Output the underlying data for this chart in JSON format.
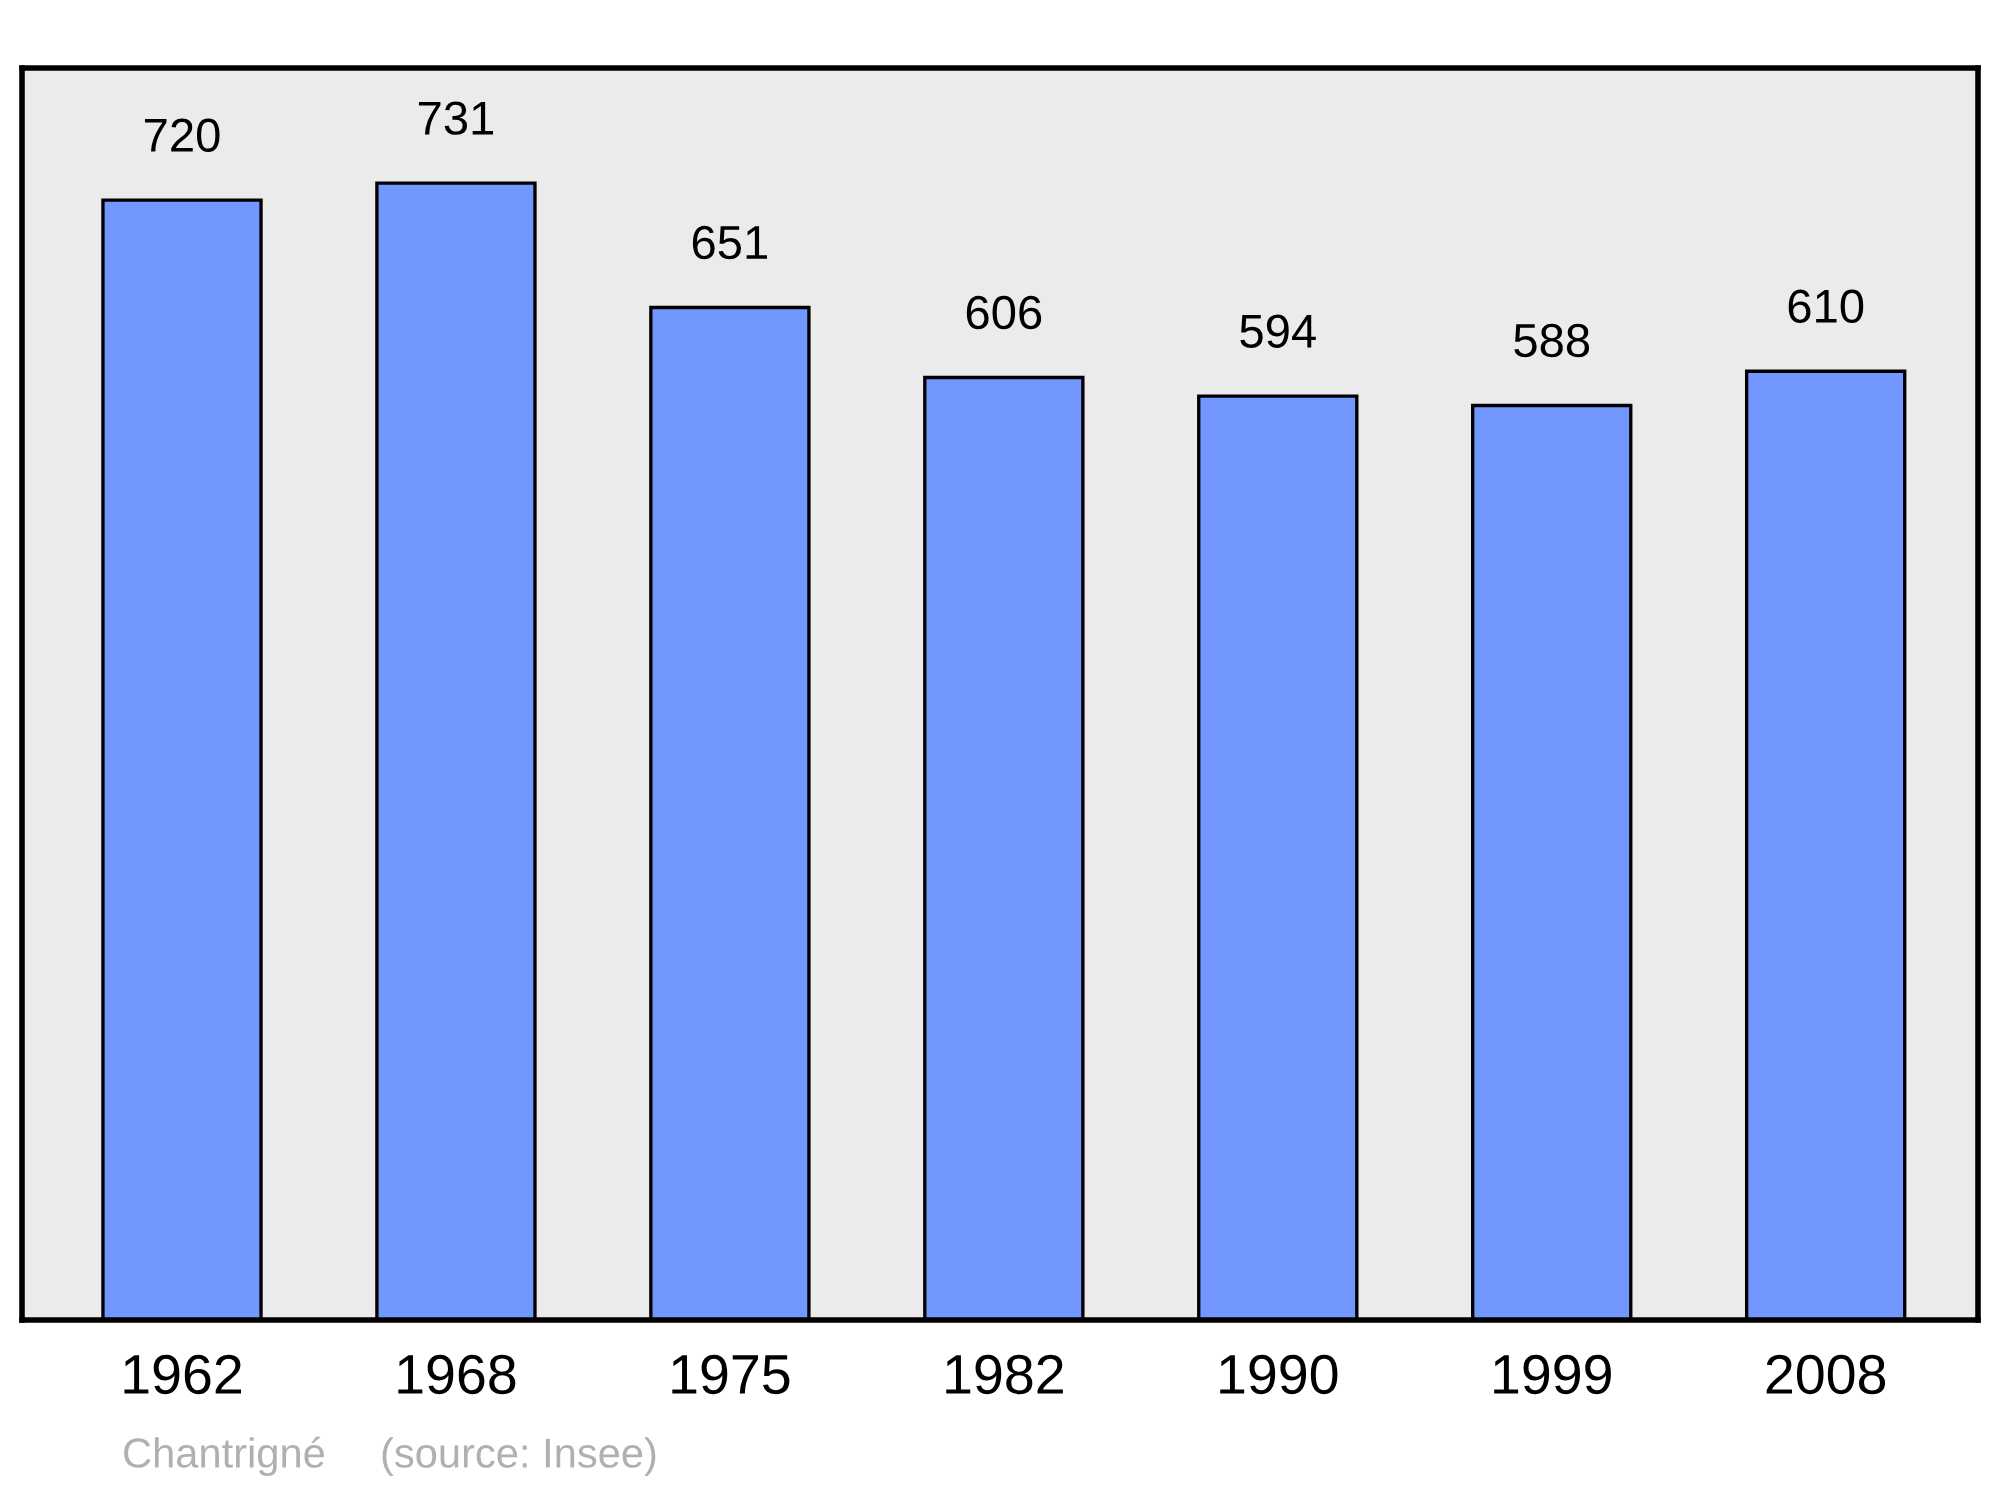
{
  "chart_data": {
    "type": "bar",
    "categories": [
      "1962",
      "1968",
      "1975",
      "1982",
      "1990",
      "1999",
      "2008"
    ],
    "values": [
      720,
      731,
      651,
      606,
      594,
      588,
      610
    ],
    "color": "#7298ff",
    "ylim": [
      0,
      805
    ],
    "data_labels": true,
    "grid": false,
    "legend": false,
    "annotations": [
      "Chantrigné",
      "(source: Insee)"
    ]
  }
}
